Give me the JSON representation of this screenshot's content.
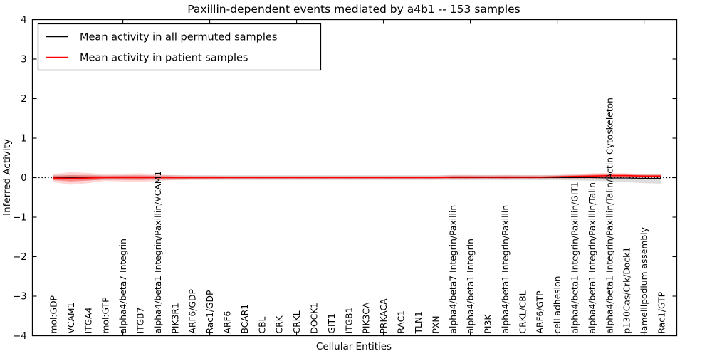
{
  "figure": {
    "title": "Paxillin-dependent events mediated by a4b1 -- 153 samples",
    "xlabel": "Cellular Entities",
    "ylabel": "Inferred Activity"
  },
  "legend": {
    "entries": [
      {
        "label": "Mean activity in all permuted samples",
        "color": "#000000"
      },
      {
        "label": "Mean activity in patient samples",
        "color": "#ff0000"
      }
    ]
  },
  "colors": {
    "permuted_line": "#000000",
    "patient_line": "#ff0000",
    "permuted_band": "#000000",
    "patient_band": "#ff0000",
    "zero_line": "#000000"
  },
  "chart_data": {
    "type": "line",
    "title": "Paxillin-dependent events mediated by a4b1 -- 153 samples",
    "xlabel": "Cellular Entities",
    "ylabel": "Inferred Activity",
    "ylim": [
      -4,
      4
    ],
    "yticks": [
      4,
      3,
      2,
      1,
      0,
      -1,
      -2,
      -3,
      -4
    ],
    "x_major_tick_entities": [
      5,
      10,
      15,
      20,
      25,
      30,
      35
    ],
    "grid": false,
    "legend_position": "upper left",
    "zero_line": 0,
    "categories": [
      "mol:GDP",
      "VCAM1",
      "ITGA4",
      "mol:GTP",
      "alpha4/beta7 Integrin",
      "ITGB7",
      "alpha4/beta1 Integrin/Paxillin/VCAM1",
      "PIK3R1",
      "ARF6/GDP",
      "Rac1/GDP",
      "ARF6",
      "BCAR1",
      "CBL",
      "CRK",
      "CRKL",
      "DOCK1",
      "GIT1",
      "ITGB1",
      "PIK3CA",
      "PRKACA",
      "RAC1",
      "TLN1",
      "PXN",
      "alpha4/beta7 Integrin/Paxillin",
      "alpha4/beta1 Integrin",
      "PI3K",
      "alpha4/beta1 Integrin/Paxillin",
      "CRKL/CBL",
      "ARF6/GTP",
      "cell adhesion",
      "alpha4/beta1 Integrin/Paxillin/GIT1",
      "alpha4/beta1 Integrin/Paxillin/Talin",
      "alpha4/beta1 Integrin/Paxillin/Talin/Actin Cytoskeleton",
      "p130Cas/Crk/Dock1",
      "lamellipodium assembly",
      "Rac1/GTP"
    ],
    "series": [
      {
        "name": "Mean activity in all permuted samples",
        "color": "#000000",
        "width": 1.1,
        "values": [
          0,
          0,
          0,
          0,
          0,
          0,
          0,
          0,
          0,
          0,
          0,
          0,
          0,
          0,
          0,
          0,
          0,
          0,
          0,
          0,
          0,
          0,
          0,
          0,
          0,
          0,
          0,
          0,
          0,
          0,
          0,
          0,
          -0.01,
          -0.01,
          -0.02,
          -0.02
        ]
      },
      {
        "name": "Mean activity in patient samples",
        "color": "#ff0000",
        "width": 1.6,
        "values": [
          -0.01,
          -0.02,
          -0.01,
          0,
          0,
          0,
          0,
          0,
          0,
          0,
          0,
          0,
          0,
          0,
          0,
          0,
          0,
          0,
          0,
          0,
          0,
          0,
          0,
          0.01,
          0.01,
          0.01,
          0.01,
          0.01,
          0.01,
          0.02,
          0.03,
          0.04,
          0.05,
          0.05,
          0.04,
          0.04
        ]
      }
    ],
    "bands": [
      {
        "name": "permuted-range",
        "color": "#000000",
        "opacity": 0.13,
        "inner_layer": false,
        "lo": [
          -0.07,
          -0.07,
          -0.07,
          -0.06,
          -0.06,
          -0.06,
          -0.06,
          -0.06,
          -0.06,
          -0.06,
          -0.06,
          -0.06,
          -0.06,
          -0.06,
          -0.06,
          -0.06,
          -0.06,
          -0.06,
          -0.06,
          -0.06,
          -0.06,
          -0.06,
          -0.06,
          -0.06,
          -0.06,
          -0.06,
          -0.06,
          -0.06,
          -0.06,
          -0.06,
          -0.07,
          -0.08,
          -0.09,
          -0.11,
          -0.14,
          -0.15
        ],
        "hi": [
          0.07,
          0.07,
          0.07,
          0.06,
          0.06,
          0.06,
          0.06,
          0.06,
          0.06,
          0.06,
          0.06,
          0.06,
          0.06,
          0.06,
          0.06,
          0.06,
          0.06,
          0.06,
          0.06,
          0.06,
          0.06,
          0.06,
          0.06,
          0.06,
          0.06,
          0.06,
          0.06,
          0.06,
          0.06,
          0.06,
          0.07,
          0.07,
          0.07,
          0.07,
          0.08,
          0.08
        ]
      },
      {
        "name": "patient-range",
        "color": "#ff0000",
        "opacity": 0.16,
        "inner_layer": true,
        "lo": [
          -0.11,
          -0.18,
          -0.14,
          -0.08,
          -0.1,
          -0.11,
          -0.08,
          -0.06,
          -0.05,
          -0.05,
          -0.04,
          -0.04,
          -0.04,
          -0.04,
          -0.04,
          -0.04,
          -0.04,
          -0.04,
          -0.04,
          -0.04,
          -0.04,
          -0.04,
          -0.04,
          -0.05,
          -0.05,
          -0.04,
          -0.05,
          -0.04,
          -0.04,
          -0.03,
          -0.03,
          -0.03,
          -0.02,
          -0.01,
          -0.01,
          -0.01
        ],
        "hi": [
          0.09,
          0.14,
          0.12,
          0.08,
          0.1,
          0.11,
          0.08,
          0.06,
          0.05,
          0.05,
          0.04,
          0.04,
          0.04,
          0.04,
          0.04,
          0.04,
          0.04,
          0.04,
          0.04,
          0.04,
          0.04,
          0.04,
          0.04,
          0.07,
          0.07,
          0.06,
          0.07,
          0.06,
          0.06,
          0.07,
          0.09,
          0.11,
          0.12,
          0.11,
          0.09,
          0.09
        ]
      }
    ]
  }
}
